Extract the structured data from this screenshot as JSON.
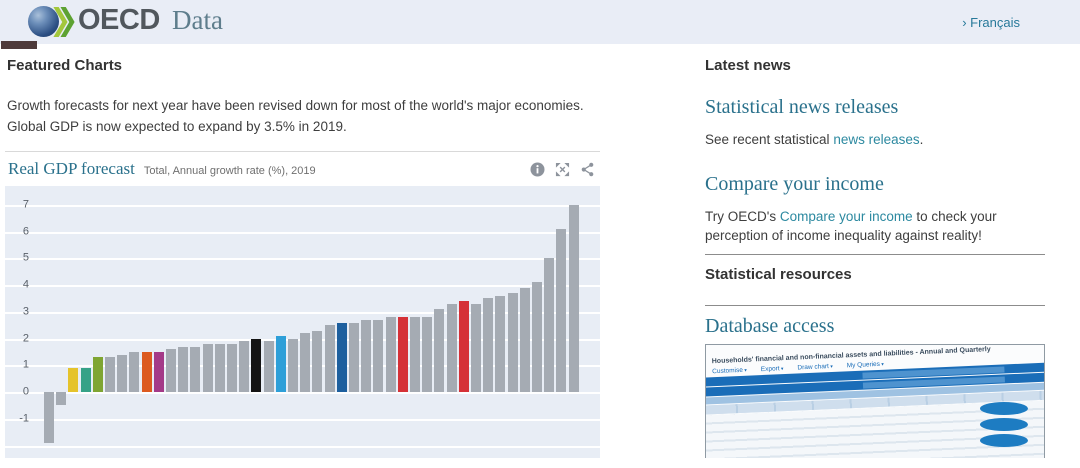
{
  "header": {
    "brand": "OECD",
    "site_name": "Data",
    "language_link": "› Français"
  },
  "featured": {
    "section_title": "Featured Charts",
    "intro": "Growth forecasts for next year have been revised down for most of the world's major economies. Global GDP is now expected to expand by 3.5% in 2019."
  },
  "chart_header": {
    "title": "Real GDP forecast",
    "subtitle": "Total, Annual growth rate (%), 2019",
    "icons": [
      "info-icon",
      "fullscreen-icon",
      "share-icon"
    ]
  },
  "chart_data": {
    "type": "bar",
    "title": "Real GDP forecast",
    "subtitle": "Total, Annual growth rate (%), 2019",
    "ylabel": "Annual growth rate (%)",
    "year": "2019",
    "ylim": [
      -2.5,
      7.7
    ],
    "ytick_labels": [
      7,
      6,
      5,
      4,
      3,
      2,
      1,
      0,
      -1
    ],
    "gridlines": [
      7,
      6,
      5,
      4,
      3,
      2,
      1,
      0,
      -1,
      -2
    ],
    "grid": true,
    "legend": false,
    "bar_count": 44,
    "values": [
      -1.9,
      -0.5,
      0.9,
      0.9,
      1.3,
      1.3,
      1.4,
      1.5,
      1.5,
      1.5,
      1.6,
      1.7,
      1.7,
      1.8,
      1.8,
      1.8,
      1.9,
      2.0,
      1.9,
      2.1,
      2.0,
      2.2,
      2.3,
      2.5,
      2.6,
      2.6,
      2.7,
      2.7,
      2.8,
      2.8,
      2.8,
      2.8,
      3.1,
      3.3,
      3.4,
      3.3,
      3.5,
      3.6,
      3.7,
      3.9,
      4.1,
      5.0,
      6.1,
      7.0
    ],
    "colors": [
      "#a5abb3",
      "#a5abb3",
      "#e5c32b",
      "#35a287",
      "#7fa532",
      "#a5abb3",
      "#a5abb3",
      "#a5abb3",
      "#dc5a20",
      "#a43a88",
      "#a5abb3",
      "#a5abb3",
      "#a5abb3",
      "#a5abb3",
      "#a5abb3",
      "#a5abb3",
      "#a5abb3",
      "#141414",
      "#a5abb3",
      "#2e9fd8",
      "#a5abb3",
      "#a5abb3",
      "#a5abb3",
      "#a5abb3",
      "#1d5f9e",
      "#a5abb3",
      "#a5abb3",
      "#a5abb3",
      "#a5abb3",
      "#d53137",
      "#a5abb3",
      "#a5abb3",
      "#a5abb3",
      "#a5abb3",
      "#d53137",
      "#a5abb3",
      "#a5abb3",
      "#a5abb3",
      "#a5abb3",
      "#a5abb3",
      "#a5abb3",
      "#a5abb3",
      "#a5abb3",
      "#a5abb3"
    ],
    "default_bar_color": "#a5abb3",
    "highlight_colors": {
      "yellow": "#e5c32b",
      "teal_green": "#35a287",
      "olive_green": "#7fa532",
      "orange": "#dc5a20",
      "magenta": "#a43a88",
      "black": "#141414",
      "light_blue": "#2e9fd8",
      "dark_blue": "#1d5f9e",
      "red": "#d53137"
    }
  },
  "news": {
    "section_title": "Latest news",
    "items": [
      {
        "heading": "Statistical news releases",
        "text_before": "See recent statistical ",
        "link_text": "news releases",
        "text_after": "."
      },
      {
        "heading": "Compare your income",
        "text_before": "Try OECD's ",
        "link_text": "Compare your income",
        "text_after": " to check your perception of income inequality against reality!"
      }
    ]
  },
  "resources": {
    "section_title": "Statistical resources",
    "database_heading": "Database access",
    "thumbnail": {
      "title": "Households' financial and non-financial assets and liabilities - Annual and Quarterly",
      "toolbar": [
        "Customise",
        "Export",
        "Draw chart",
        "My Queries"
      ]
    }
  },
  "colors": {
    "header_bg": "#e9edf6",
    "plot_bg": "#e8edf5",
    "accent_heading_teal": "#2a718c",
    "link_teal": "#2c89a0",
    "text_dark": "#3e3e3e",
    "thumb_blue": "#1a6db8"
  }
}
